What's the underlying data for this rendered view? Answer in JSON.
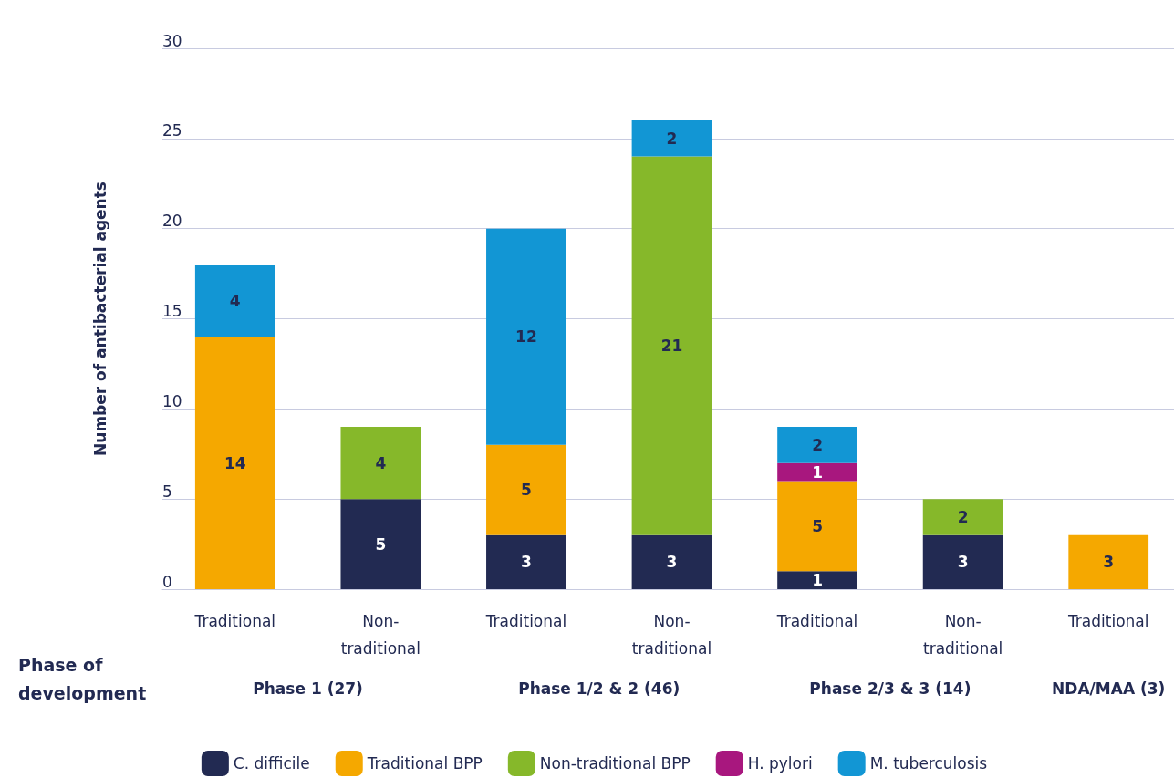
{
  "chart_data": {
    "type": "bar",
    "stacked": true,
    "ylabel": "Number of antibacterial agents",
    "xlabel": "Phase of development",
    "categories": [
      "Traditional",
      "Non-traditional",
      "Traditional",
      "Non-traditional",
      "Traditional",
      "Non-traditional",
      "Traditional"
    ],
    "annotations": [
      "Phase 1 (27)",
      "Phase 1/2 & 2 (46)",
      "Phase 2/3 & 3 (14)",
      "NDA/MAA (3)"
    ],
    "series": [
      {
        "name": "C. difficile",
        "color": "#222a52",
        "values": [
          null,
          5,
          3,
          3,
          1,
          3,
          null
        ]
      },
      {
        "name": "Traditional BPP",
        "color": "#f5a800",
        "values": [
          14,
          null,
          5,
          null,
          5,
          null,
          3
        ]
      },
      {
        "name": "Non-traditional BPP",
        "color": "#86b82a",
        "values": [
          null,
          4,
          null,
          21,
          null,
          2,
          null
        ]
      },
      {
        "name": "H. pylori",
        "color": "#a8177e",
        "values": [
          null,
          null,
          null,
          null,
          1,
          null,
          null
        ]
      },
      {
        "name": "M. tuberculosis",
        "color": "#1296d4",
        "values": [
          4,
          null,
          12,
          2,
          2,
          null,
          null
        ]
      }
    ],
    "ylim": [
      0,
      30
    ],
    "yticks": [
      0,
      5,
      10,
      15,
      20,
      25,
      30
    ],
    "grid": "y",
    "legend": "bottom",
    "data_labels": true
  }
}
